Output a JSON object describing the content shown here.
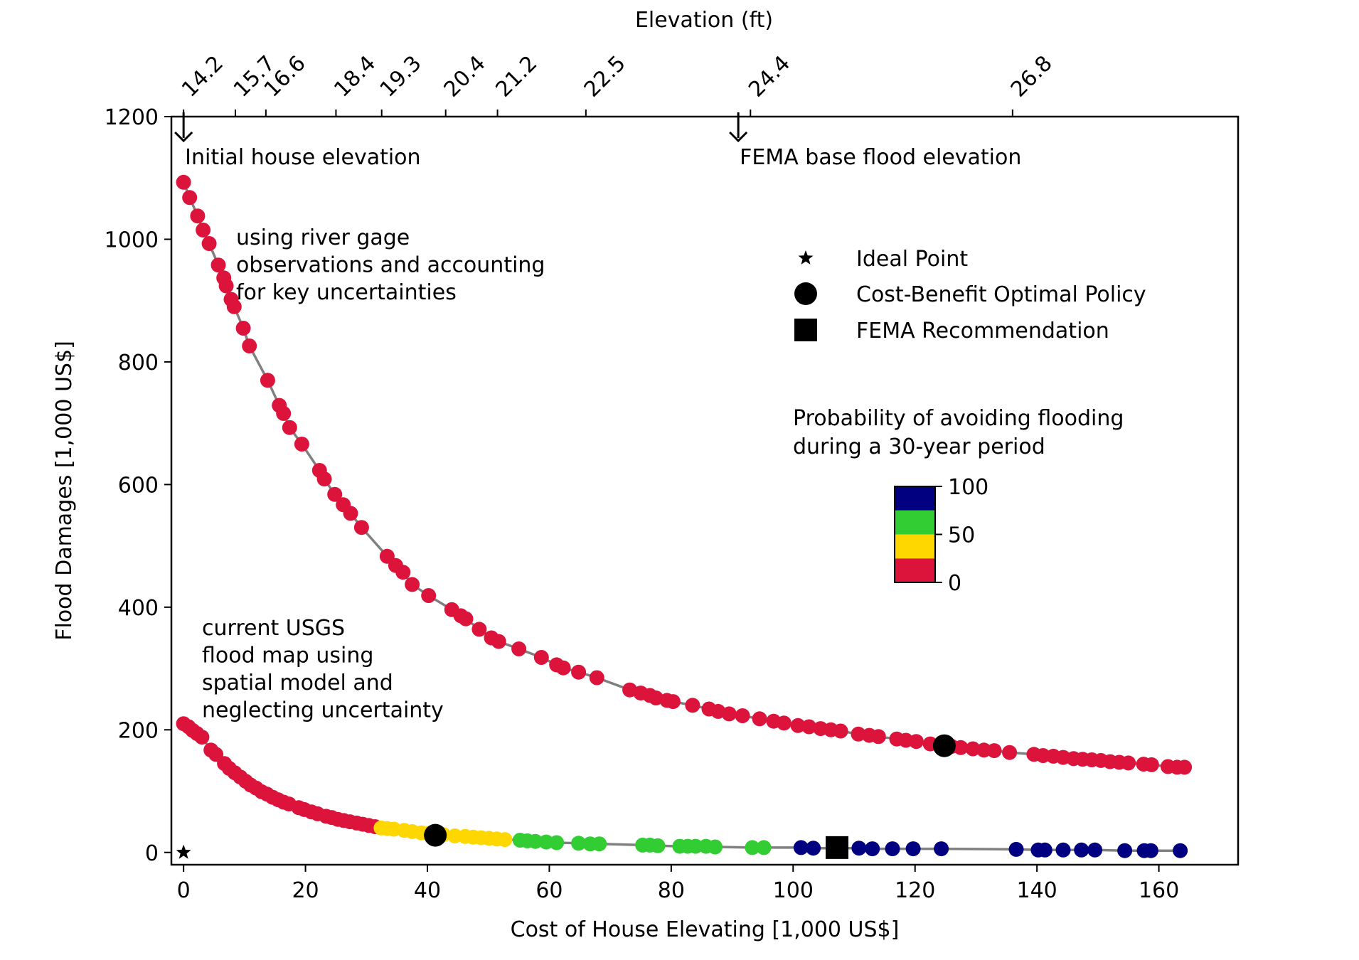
{
  "chart_data": {
    "type": "scatter",
    "xlabel": "Cost of House Elevating [1,000 US$]",
    "ylabel": "Flood Damages [1,000 US$]",
    "top_axis_label": "Elevation (ft)",
    "xlim": [
      -2,
      173
    ],
    "ylim": [
      -20,
      1200
    ],
    "x_ticks": [
      0,
      20,
      40,
      60,
      80,
      100,
      120,
      140,
      160
    ],
    "y_ticks": [
      0,
      200,
      400,
      600,
      800,
      1000,
      1200
    ],
    "top_ticks": [
      {
        "x": 0,
        "label": "14.2"
      },
      {
        "x": 8.5,
        "label": "15.7"
      },
      {
        "x": 13.5,
        "label": "16.6"
      },
      {
        "x": 25,
        "label": "18.4"
      },
      {
        "x": 32.5,
        "label": "19.3"
      },
      {
        "x": 43,
        "label": "20.4"
      },
      {
        "x": 51.5,
        "label": "21.2"
      },
      {
        "x": 66,
        "label": "22.5"
      },
      {
        "x": 93,
        "label": "24.4"
      },
      {
        "x": 136,
        "label": "26.8"
      }
    ],
    "annotations": [
      {
        "id": "initial",
        "text": "Initial house elevation",
        "x": 0,
        "arrow": true
      },
      {
        "id": "fema_bfe",
        "text": "FEMA base flood elevation",
        "x": 91,
        "arrow": true
      },
      {
        "id": "upper_curve",
        "lines": [
          "using river gage",
          " observations and accounting",
          " for key uncertainties"
        ]
      },
      {
        "id": "lower_curve",
        "lines": [
          "current USGS",
          " flood map using",
          " spatial model and",
          " neglecting uncertainty"
        ]
      }
    ],
    "legend": [
      {
        "marker": "star",
        "label": "Ideal Point"
      },
      {
        "marker": "circle",
        "label": "Cost-Benefit Optimal Policy"
      },
      {
        "marker": "square",
        "label": "FEMA Recommendation"
      }
    ],
    "colorbar": {
      "title_lines": [
        "Probability of avoiding flooding",
        " during a 30-year period"
      ],
      "ticks": [
        "100",
        "50",
        "0"
      ],
      "colors": [
        "#dc143c",
        "#ffd700",
        "#32cd32",
        "#000080"
      ]
    },
    "series": [
      {
        "line_color": "#808080",
        "points": [
          [
            0,
            1093,
            0
          ],
          [
            1,
            1068,
            0
          ],
          [
            2.3,
            1038,
            0
          ],
          [
            3.2,
            1015,
            0
          ],
          [
            4.2,
            993,
            0
          ],
          [
            5.7,
            958,
            0
          ],
          [
            6.6,
            937,
            0
          ],
          [
            7,
            924,
            0
          ],
          [
            7.8,
            902,
            0
          ],
          [
            8.3,
            890,
            0
          ],
          [
            9.8,
            855,
            0
          ],
          [
            10.8,
            826,
            0
          ],
          [
            13.8,
            770,
            0
          ],
          [
            15.7,
            729,
            0
          ],
          [
            16.4,
            716,
            0
          ],
          [
            17.4,
            693,
            0
          ],
          [
            19.4,
            666,
            0
          ],
          [
            22.3,
            623,
            0
          ],
          [
            23.1,
            609,
            0
          ],
          [
            24.8,
            584,
            0
          ],
          [
            26.2,
            567,
            0
          ],
          [
            27.4,
            553,
            0
          ],
          [
            29.2,
            530,
            0
          ],
          [
            33.4,
            483,
            0
          ],
          [
            34.8,
            468,
            0
          ],
          [
            36,
            457,
            0
          ],
          [
            37.5,
            437,
            0
          ],
          [
            40.2,
            419,
            0
          ],
          [
            44,
            396,
            0
          ],
          [
            45.5,
            386,
            0
          ],
          [
            46.3,
            381,
            0
          ],
          [
            48.5,
            364,
            0
          ],
          [
            50.5,
            350,
            0
          ],
          [
            51.7,
            344,
            0
          ],
          [
            55,
            332,
            0
          ],
          [
            58.7,
            318,
            0
          ],
          [
            61.2,
            306,
            0
          ],
          [
            62.3,
            301,
            0
          ],
          [
            64.8,
            294,
            0
          ],
          [
            67.8,
            285,
            0
          ],
          [
            73.2,
            265,
            0
          ],
          [
            75,
            260,
            0
          ],
          [
            76.5,
            256,
            0
          ],
          [
            77.5,
            252,
            0
          ],
          [
            79.3,
            248,
            0
          ],
          [
            80.3,
            246,
            0
          ],
          [
            83.5,
            240,
            0
          ],
          [
            86.2,
            234,
            0
          ],
          [
            87.7,
            230,
            0
          ],
          [
            89.5,
            226,
            0
          ],
          [
            91.7,
            223,
            0
          ],
          [
            94.5,
            218,
            0
          ],
          [
            96.8,
            214,
            0
          ],
          [
            98.5,
            211,
            0
          ],
          [
            100.8,
            207,
            0
          ],
          [
            102.6,
            205,
            0
          ],
          [
            104.5,
            202,
            0
          ],
          [
            106.2,
            200,
            0
          ],
          [
            107.8,
            198,
            0
          ],
          [
            110.7,
            193,
            0
          ],
          [
            112.5,
            191,
            0
          ],
          [
            114,
            189,
            0
          ],
          [
            117,
            185,
            0
          ],
          [
            118.5,
            183,
            0
          ],
          [
            120.2,
            181,
            0
          ],
          [
            122.5,
            177,
            0
          ],
          [
            126,
            173,
            0
          ],
          [
            127.5,
            171,
            0
          ],
          [
            129.5,
            169,
            0
          ],
          [
            131.3,
            167,
            0
          ],
          [
            133,
            166,
            0
          ],
          [
            135.5,
            163,
            0
          ],
          [
            139.5,
            160,
            0
          ],
          [
            141,
            158,
            0
          ],
          [
            142.7,
            157,
            0
          ],
          [
            144.3,
            155,
            0
          ],
          [
            146,
            153,
            0
          ],
          [
            147.5,
            152,
            0
          ],
          [
            149,
            151,
            0
          ],
          [
            150.5,
            150,
            0
          ],
          [
            152,
            148,
            0
          ],
          [
            153.5,
            147,
            0
          ],
          [
            155,
            146,
            0
          ],
          [
            157.5,
            144,
            0
          ],
          [
            158.8,
            143,
            0
          ],
          [
            161.5,
            140,
            0
          ],
          [
            163,
            139,
            0
          ],
          [
            164.2,
            139,
            0
          ]
        ]
      },
      {
        "line_color": "#808080",
        "points": [
          [
            0,
            210,
            0
          ],
          [
            0.8,
            205,
            0
          ],
          [
            1.5,
            199,
            0
          ],
          [
            2.2,
            194,
            0
          ],
          [
            3,
            188,
            0
          ],
          [
            4.5,
            167,
            0
          ],
          [
            5.3,
            160,
            0
          ],
          [
            6.7,
            145,
            0
          ],
          [
            7.5,
            137,
            0
          ],
          [
            8.4,
            130,
            0
          ],
          [
            9.3,
            123,
            0
          ],
          [
            10.2,
            116,
            0
          ],
          [
            11,
            110,
            0
          ],
          [
            11.9,
            105,
            0
          ],
          [
            12.8,
            99,
            0
          ],
          [
            13.7,
            95,
            0
          ],
          [
            14.6,
            90,
            0
          ],
          [
            15.5,
            86,
            0
          ],
          [
            16.4,
            82,
            0
          ],
          [
            17.3,
            79,
            0
          ],
          [
            18.9,
            73,
            0
          ],
          [
            19.8,
            70,
            0
          ],
          [
            21,
            66,
            0
          ],
          [
            22,
            63,
            0
          ],
          [
            23.4,
            59,
            0
          ],
          [
            24.3,
            57,
            0
          ],
          [
            25.3,
            54,
            0
          ],
          [
            26.3,
            52,
            0
          ],
          [
            27.3,
            50,
            0
          ],
          [
            28.4,
            48,
            0
          ],
          [
            29.4,
            46,
            0
          ],
          [
            30.4,
            44,
            0
          ],
          [
            31.4,
            42,
            0
          ],
          [
            32.4,
            40,
            1
          ],
          [
            33.4,
            39,
            1
          ],
          [
            34.5,
            38,
            1
          ],
          [
            36.2,
            36,
            1
          ],
          [
            37.5,
            34,
            1
          ],
          [
            39,
            32,
            1
          ],
          [
            40.2,
            31,
            1
          ],
          [
            41.4,
            30,
            1
          ],
          [
            42.6,
            29,
            1
          ],
          [
            44.5,
            27,
            1
          ],
          [
            46.2,
            26,
            1
          ],
          [
            47.5,
            25,
            1
          ],
          [
            48.8,
            24,
            1
          ],
          [
            50.1,
            23,
            1
          ],
          [
            51.4,
            22,
            1
          ],
          [
            52.7,
            21,
            1
          ],
          [
            55.2,
            20,
            2
          ],
          [
            56.4,
            19,
            2
          ],
          [
            57.7,
            18,
            2
          ],
          [
            59.5,
            17,
            2
          ],
          [
            61.2,
            16,
            2
          ],
          [
            64.8,
            15,
            2
          ],
          [
            66.7,
            14,
            2
          ],
          [
            68.2,
            14,
            2
          ],
          [
            75.3,
            12,
            2
          ],
          [
            76.5,
            12,
            2
          ],
          [
            77.8,
            11,
            2
          ],
          [
            81.4,
            10,
            2
          ],
          [
            82.7,
            10,
            2
          ],
          [
            84,
            10,
            2
          ],
          [
            85.7,
            10,
            2
          ],
          [
            87.2,
            9,
            2
          ],
          [
            93.3,
            8,
            2
          ],
          [
            95.2,
            8,
            2
          ],
          [
            101.3,
            8,
            3
          ],
          [
            103.3,
            7,
            3
          ],
          [
            110.8,
            7,
            3
          ],
          [
            113,
            6,
            3
          ],
          [
            116.3,
            6,
            3
          ],
          [
            119.7,
            6,
            3
          ],
          [
            124.3,
            6,
            3
          ],
          [
            136.6,
            5,
            3
          ],
          [
            140.2,
            4,
            3
          ],
          [
            141.3,
            4,
            3
          ],
          [
            144.3,
            4,
            3
          ],
          [
            147.3,
            4,
            3
          ],
          [
            149.5,
            4,
            3
          ],
          [
            154.4,
            3,
            3
          ],
          [
            157.6,
            3,
            3
          ],
          [
            158.7,
            3,
            3
          ],
          [
            163.5,
            3,
            3
          ]
        ]
      }
    ],
    "special_points": [
      {
        "name": "Ideal Point",
        "marker": "star",
        "x": 0,
        "y": 0
      },
      {
        "name": "Cost-Benefit Optimal Policy",
        "marker": "circle",
        "x": 41.3,
        "y": 28
      },
      {
        "name": "Cost-Benefit Optimal Policy",
        "marker": "circle",
        "x": 124.8,
        "y": 174
      },
      {
        "name": "FEMA Recommendation",
        "marker": "square",
        "x": 107.2,
        "y": 8
      }
    ]
  }
}
